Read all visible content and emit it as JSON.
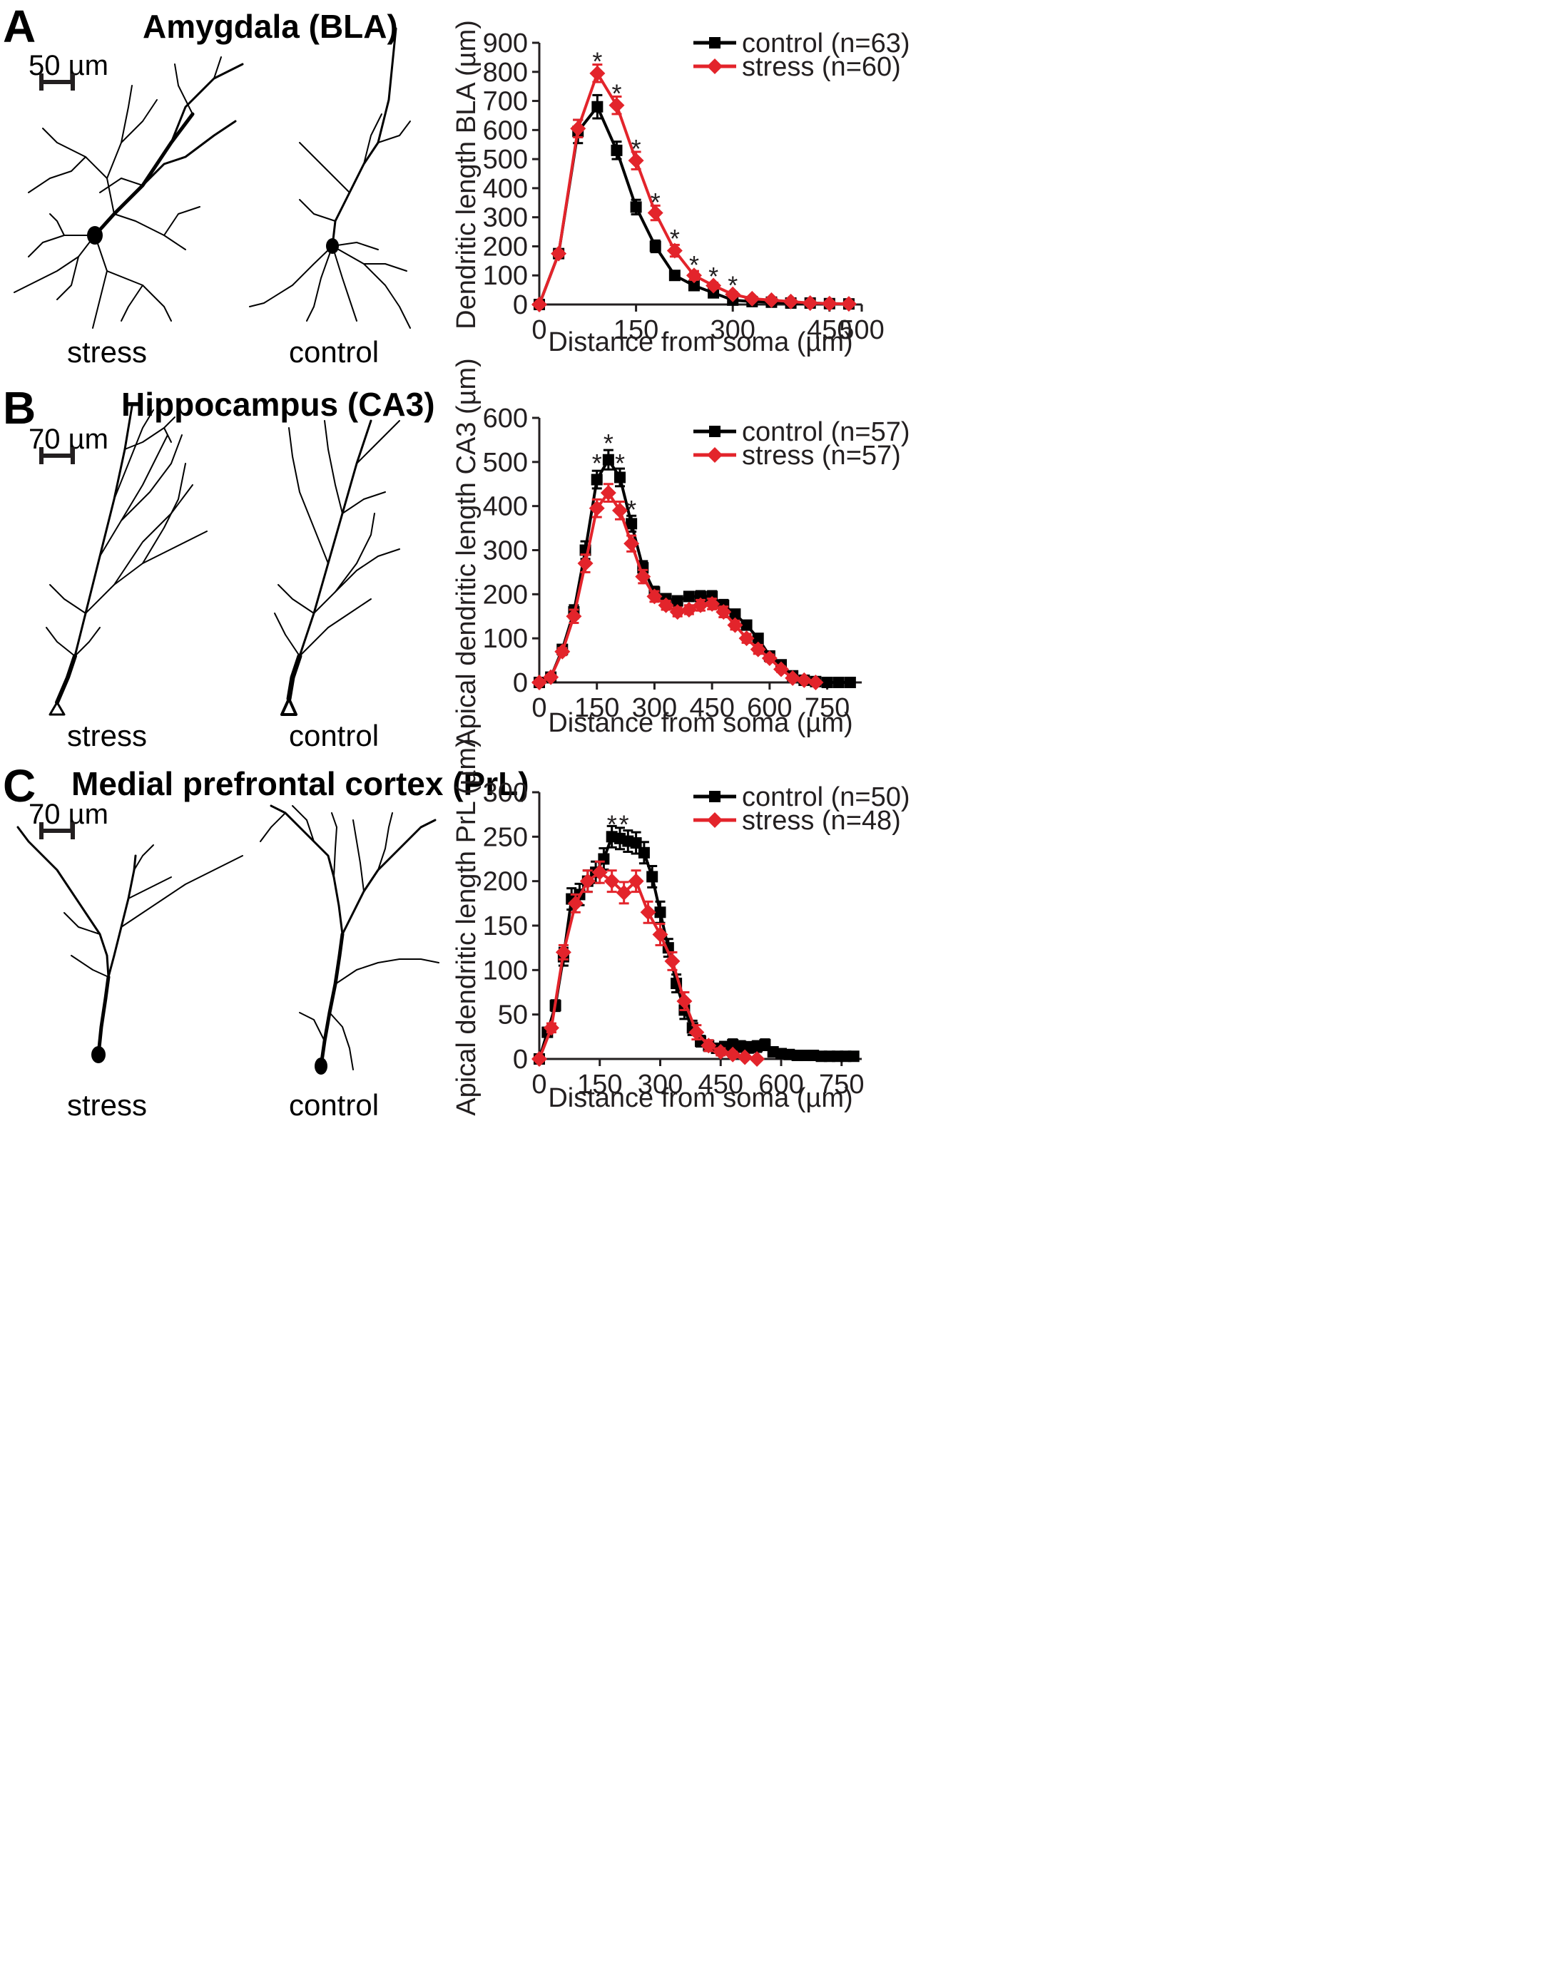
{
  "colors": {
    "control": "#000000",
    "stress": "#e3242b",
    "axis": "#231f20"
  },
  "panels": [
    {
      "letter": "A",
      "title": "Amygdala (BLA)",
      "scale_label": "50 µm",
      "neuron_labels": [
        "stress",
        "control"
      ],
      "chart_data": {
        "type": "line",
        "title": "",
        "xlabel": "Distance from soma (µm)",
        "ylabel": "Dendritic length BLA (µm)",
        "xlim": [
          0,
          500
        ],
        "ylim": [
          0,
          900
        ],
        "xticks": [
          0,
          150,
          300,
          450,
          500
        ],
        "yticks": [
          0,
          100,
          200,
          300,
          400,
          500,
          600,
          700,
          800,
          900
        ],
        "legend_position": "top-right",
        "series": [
          {
            "name": "control (n=63)",
            "marker": "square",
            "x": [
              0,
              30,
              60,
              90,
              120,
              150,
              180,
              210,
              240,
              270,
              300,
              330,
              360,
              390,
              420,
              450,
              480
            ],
            "y": [
              0,
              175,
              595,
              680,
              530,
              335,
              200,
              100,
              65,
              40,
              15,
              10,
              8,
              5,
              5,
              3,
              2
            ],
            "err": [
              0,
              10,
              40,
              40,
              30,
              25,
              20,
              12,
              10,
              8,
              6,
              4,
              4,
              3,
              3,
              2,
              2
            ]
          },
          {
            "name": "stress (n=60)",
            "marker": "diamond",
            "x": [
              0,
              30,
              60,
              90,
              120,
              150,
              180,
              210,
              240,
              270,
              300,
              330,
              360,
              390,
              420,
              450,
              480
            ],
            "y": [
              0,
              175,
              605,
              795,
              685,
              495,
              315,
              185,
              100,
              65,
              35,
              20,
              15,
              10,
              5,
              3,
              2
            ],
            "err": [
              0,
              10,
              30,
              30,
              30,
              30,
              25,
              20,
              15,
              10,
              8,
              5,
              4,
              3,
              3,
              2,
              2
            ]
          }
        ],
        "significance": [
          {
            "x": 90,
            "y": 840,
            "label": "*"
          },
          {
            "x": 120,
            "y": 730,
            "label": "*"
          },
          {
            "x": 150,
            "y": 540,
            "label": "*"
          },
          {
            "x": 180,
            "y": 355,
            "label": "*"
          },
          {
            "x": 210,
            "y": 230,
            "label": "*"
          },
          {
            "x": 240,
            "y": 140,
            "label": "*"
          },
          {
            "x": 270,
            "y": 100,
            "label": "*"
          },
          {
            "x": 300,
            "y": 70,
            "label": "*"
          }
        ]
      }
    },
    {
      "letter": "B",
      "title": "Hippocampus (CA3)",
      "scale_label": "70 µm",
      "neuron_labels": [
        "stress",
        "control"
      ],
      "chart_data": {
        "type": "line",
        "title": "",
        "xlabel": "Distance from soma  (µm)",
        "ylabel": "Apical dendritic length CA3 (µm)",
        "xlim": [
          0,
          840
        ],
        "ylim": [
          0,
          600
        ],
        "xticks": [
          0,
          150,
          300,
          450,
          600,
          750
        ],
        "yticks": [
          0,
          100,
          200,
          300,
          400,
          500,
          600
        ],
        "legend_position": "top-right",
        "series": [
          {
            "name": "control (n=57)",
            "marker": "square",
            "x": [
              0,
              30,
              60,
              90,
              120,
              150,
              180,
              210,
              240,
              270,
              300,
              330,
              360,
              390,
              420,
              450,
              480,
              510,
              540,
              570,
              600,
              630,
              660,
              690,
              720,
              750,
              780,
              810
            ],
            "y": [
              0,
              12,
              75,
              160,
              300,
              460,
              505,
              465,
              360,
              260,
              205,
              190,
              185,
              195,
              195,
              195,
              175,
              155,
              130,
              100,
              60,
              40,
              15,
              5,
              2,
              0,
              0,
              0
            ],
            "err": [
              0,
              5,
              8,
              15,
              20,
              20,
              22,
              20,
              18,
              15,
              12,
              10,
              10,
              10,
              12,
              12,
              12,
              10,
              10,
              10,
              8,
              6,
              5,
              3,
              2,
              0,
              0,
              0
            ]
          },
          {
            "name": "stress (n=57)",
            "marker": "diamond",
            "x": [
              0,
              30,
              60,
              90,
              120,
              150,
              180,
              210,
              240,
              270,
              300,
              330,
              360,
              390,
              420,
              450,
              480,
              510,
              540,
              570,
              600,
              630,
              660,
              690,
              720
            ],
            "y": [
              0,
              12,
              70,
              150,
              270,
              395,
              430,
              390,
              315,
              240,
              195,
              175,
              160,
              165,
              175,
              178,
              160,
              130,
              100,
              75,
              55,
              30,
              10,
              5,
              0
            ],
            "err": [
              0,
              5,
              8,
              15,
              20,
              20,
              20,
              20,
              18,
              15,
              12,
              10,
              10,
              10,
              12,
              12,
              12,
              10,
              10,
              10,
              8,
              6,
              5,
              3,
              0
            ]
          }
        ],
        "significance": [
          {
            "x": 150,
            "y": 500,
            "label": "*"
          },
          {
            "x": 180,
            "y": 545,
            "label": "*"
          },
          {
            "x": 210,
            "y": 500,
            "label": "*"
          },
          {
            "x": 240,
            "y": 395,
            "label": "*"
          }
        ]
      }
    },
    {
      "letter": "C",
      "title": "Medial prefrontal cortex (PrL)",
      "scale_label": "70 µm",
      "neuron_labels": [
        "stress",
        "control"
      ],
      "chart_data": {
        "type": "line",
        "title": "",
        "xlabel": "Distance from soma (µm)",
        "ylabel": "Apical dendritic length PrL (µm)",
        "xlim": [
          0,
          800
        ],
        "ylim": [
          0,
          300
        ],
        "xticks": [
          0,
          150,
          300,
          450,
          600,
          750
        ],
        "yticks": [
          0,
          50,
          100,
          150,
          200,
          250,
          300
        ],
        "legend_position": "top-right",
        "series": [
          {
            "name": "control (n=50)",
            "marker": "square",
            "x": [
              0,
              20,
              40,
              60,
              80,
              100,
              120,
              140,
              160,
              180,
              200,
              220,
              240,
              260,
              280,
              300,
              320,
              340,
              360,
              380,
              400,
              420,
              440,
              460,
              480,
              500,
              520,
              540,
              560,
              580,
              600,
              620,
              640,
              660,
              680,
              700,
              720,
              740,
              760,
              780
            ],
            "y": [
              0,
              30,
              60,
              115,
              180,
              185,
              200,
              210,
              225,
              250,
              248,
              245,
              243,
              232,
              205,
              165,
              125,
              85,
              55,
              35,
              20,
              15,
              12,
              14,
              16,
              14,
              13,
              14,
              16,
              8,
              6,
              5,
              4,
              4,
              4,
              3,
              3,
              3,
              3,
              3
            ],
            "err": [
              0,
              5,
              6,
              10,
              12,
              12,
              12,
              12,
              12,
              12,
              12,
              12,
              12,
              12,
              12,
              12,
              10,
              10,
              10,
              8,
              6,
              6,
              5,
              5,
              6,
              6,
              6,
              6,
              6,
              4,
              3,
              3,
              2,
              2,
              2,
              2,
              2,
              2,
              2,
              2
            ]
          },
          {
            "name": "stress (n=48)",
            "marker": "diamond",
            "x": [
              0,
              30,
              60,
              90,
              120,
              150,
              180,
              210,
              240,
              270,
              300,
              330,
              360,
              390,
              420,
              450,
              480,
              510,
              540
            ],
            "y": [
              0,
              35,
              120,
              175,
              200,
              210,
              200,
              187,
              200,
              165,
              140,
              110,
              65,
              30,
              15,
              8,
              5,
              2,
              0
            ],
            "err": [
              0,
              5,
              8,
              10,
              12,
              12,
              12,
              12,
              12,
              12,
              12,
              10,
              10,
              8,
              6,
              4,
              3,
              2,
              0
            ]
          }
        ],
        "significance": [
          {
            "x": 180,
            "y": 265,
            "label": "*"
          },
          {
            "x": 210,
            "y": 265,
            "label": "*"
          }
        ]
      }
    }
  ]
}
